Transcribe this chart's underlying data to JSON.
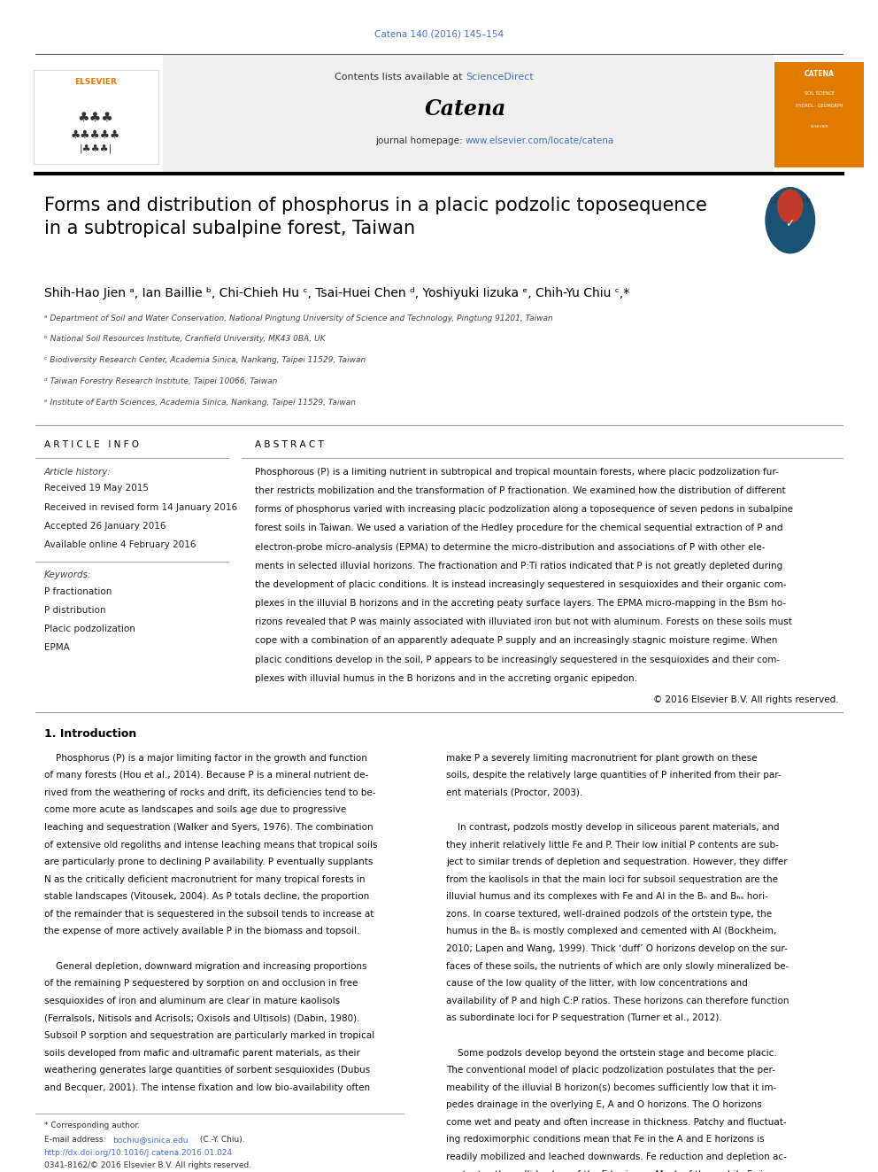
{
  "page_width": 9.92,
  "page_height": 13.23,
  "background_color": "#ffffff",
  "journal_ref": "Catena 140 (2016) 145–154",
  "journal_ref_color": "#4472c4",
  "header_bg": "#f0f0f0",
  "header_text": "Contents lists available at ",
  "header_sciencedirect": "ScienceDirect",
  "header_sciencedirect_color": "#4472c4",
  "journal_name": "Catena",
  "journal_homepage_text": "journal homepage: ",
  "journal_homepage_url": "www.elsevier.com/locate/catena",
  "journal_homepage_url_color": "#4472c4",
  "article_title": "Forms and distribution of phosphorus in a placic podzolic toposequence\nin a subtropical subalpine forest, Taiwan",
  "article_title_color": "#000000",
  "authors": "Shih-Hao Jien ᵃ, Ian Baillie ᵇ, Chi-Chieh Hu ᶜ, Tsai-Huei Chen ᵈ, Yoshiyuki Iizuka ᵉ, Chih-Yu Chiu ᶜ,*",
  "affil_a": "ᵃ Department of Soil and Water Conservation, National Pingtung University of Science and Technology, Pingtung 91201, Taiwan",
  "affil_b": "ᵇ National Soil Resources Institute, Cranfield University, MK43 0BA, UK",
  "affil_c": "ᶜ Biodiversity Research Center, Academia Sinica, Nankang, Taipei 11529, Taiwan",
  "affil_d": "ᵈ Taiwan Forestry Research Institute, Taipei 10066, Taiwan",
  "affil_e": "ᵉ Institute of Earth Sciences, Academia Sinica, Nankang, Taipei 11529, Taiwan",
  "article_info_header": "A R T I C L E   I N F O",
  "abstract_header": "A B S T R A C T",
  "article_history_label": "Article history:",
  "received": "Received 19 May 2015",
  "revised": "Received in revised form 14 January 2016",
  "accepted": "Accepted 26 January 2016",
  "online": "Available online 4 February 2016",
  "keywords_label": "Keywords:",
  "keyword1": "P fractionation",
  "keyword2": "P distribution",
  "keyword3": "Placic podzolization",
  "keyword4": "EPMA",
  "abstract_text": "Phosphorous (P) is a limiting nutrient in subtropical and tropical mountain forests, where placic podzolization further restricts mobilization and the transformation of P fractionation. We examined how the distribution of different forms of phosphorus varied with increasing placic podzolization along a toposequence of seven pedons in subalpine forest soils in Taiwan. We used a variation of the Hedley procedure for the chemical sequential extraction of P and electron-probe micro-analysis (EPMA) to determine the micro-distribution and associations of P with other elements in selected illuvial horizons. The fractionation and P:Ti ratios indicated that P is not greatly depleted during the development of placic conditions. It is instead increasingly sequestered in sesquioxides and their organic complexes in the illuvial B horizons and in the accreting peaty surface layers. The EPMA micro-mapping in the Bsm horizons revealed that P was mainly associated with illuviated iron but not with aluminum. Forests on these soils must cope with a combination of an apparently adequate P supply and an increasingly stagnic moisture regime. When placic conditions develop in the soil, P appears to be increasingly sequestered in the sesquioxides and their complexes with illuvial humus in the B horizons and in the accreting organic epipedon.",
  "copyright": "© 2016 Elsevier B.V. All rights reserved.",
  "intro_header": "1. Introduction",
  "intro_col1_p1": "    Phosphorus (P) is a major limiting factor in the growth and function of many forests (Hou et al., 2014). Because P is a mineral nutrient derived from the weathering of rocks and drift, its deficiencies tend to become more acute as landscapes and soils age due to progressive leaching and sequestration (Walker and Syers, 1976). The combination of extensive old regoliths and intense leaching means that tropical soils are particularly prone to declining P availability. P eventually supplants N as the critically deficient macronutrient for many tropical forests in stable landscapes (Vitousek, 2004). As P totals decline, the proportion of the remainder that is sequestered in the subsoil tends to increase at the expense of more actively available P in the biomass and topsoil.",
  "intro_col1_p2": "    General depletion, downward migration and increasing proportions of the remaining P sequestered by sorption on and occlusion in free sesquioxides of iron and aluminum are clear in mature kaolisols (Ferralsols, Nitisols and Acrisols; Oxisols and Ultisols) (Dabin, 1980). Subsoil P sorption and sequestration are particularly marked in tropical soils developed from mafic and ultramafic parent materials, as their weathering generates large quantities of sorbent sesquioxides (Dubus and Becquer, 2001). The intense fixation and low bio-availability often",
  "intro_col2_p1": "make P a severely limiting macronutrient for plant growth on these soils, despite the relatively large quantities of P inherited from their parent materials (Proctor, 2003).",
  "intro_col2_p2": "    In contrast, podzols mostly develop in siliceous parent materials, and they inherit relatively little Fe and P. Their low initial P contents are subject to similar trends of depletion and sequestration. However, they differ from the kaolisols in that the main loci for subsoil sequestration are the illuvial humus and its complexes with Fe and Al in the Bh and Bhs horizons. In coarse textured, well-drained podzols of the ortstein type, the humus in the Bh is mostly complexed and cemented with Al (Bockheim, 2010; Lapen and Wang, 1999). Thick ‘duff’ O horizons develop on the surfaces of these soils, the nutrients of which are only slowly mineralized because of the low quality of the litter, with low concentrations and availability of P and high C:P ratios. These horizons can therefore function as subordinate loci for P sequestration (Turner et al., 2012).",
  "intro_col2_p3": "    Some podzols develop beyond the ortstein stage and become placic. The conventional model of placic podzolization postulates that the permeability of the illuvial B horizon(s) becomes sufficiently low that it impedes drainage in the overlying E, A and O horizons. The O horizons come wet and peaty and often increase in thickness. Patchy and fluctuating redoximorphic conditions mean that Fe in the A and E horizons is readily mobilized and leached downwards. Fe reduction and depletion accentuates the pallid colors of the E horizons. Much of the mobile Fe is oxidized and deposited as sesquioxides or ferric–organic complexes at the",
  "footer_corresponding": "* Corresponding author.",
  "footer_email_label": "E-mail address: ",
  "footer_email": "bochiu@sinica.edu",
  "footer_email_suffix": " (C.-Y. Chiu).",
  "footer_doi": "http://dx.doi.org/10.1016/j.catena.2016.01.024",
  "footer_issn": "0341-8162/© 2016 Elsevier B.V. All rights reserved.",
  "catena_orange": "#e07b00",
  "link_color": "#4472c4",
  "separator_color": "#cccccc"
}
